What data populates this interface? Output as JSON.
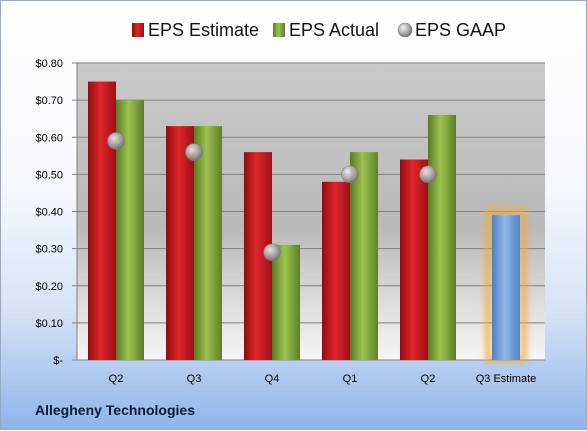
{
  "company": "Allegheny Technologies",
  "chart_data": {
    "type": "bar",
    "categories": [
      "Q2",
      "Q3",
      "Q4",
      "Q1",
      "Q2",
      "Q3 Estimate"
    ],
    "series": [
      {
        "name": "EPS Estimate",
        "type": "bar",
        "color": "#c8161d",
        "values": [
          0.75,
          0.63,
          0.56,
          0.48,
          0.54,
          null
        ]
      },
      {
        "name": "EPS Actual",
        "type": "bar",
        "color": "#7ea33a",
        "values": [
          0.7,
          0.63,
          0.31,
          0.56,
          0.66,
          0.39
        ]
      },
      {
        "name": "EPS GAAP",
        "type": "scatter",
        "color": "#a9a9a9",
        "values": [
          0.59,
          0.56,
          0.29,
          0.5,
          0.5,
          null
        ]
      }
    ],
    "highlight": {
      "category": "Q3 Estimate",
      "color": "#6f9fd8",
      "glow": "#f2a93b"
    },
    "y_ticks": [
      {
        "value": 0.8,
        "label": "$0.80"
      },
      {
        "value": 0.7,
        "label": "$0.70"
      },
      {
        "value": 0.6,
        "label": "$0.60"
      },
      {
        "value": 0.5,
        "label": "$0.50"
      },
      {
        "value": 0.4,
        "label": "$0.40"
      },
      {
        "value": 0.3,
        "label": "$0.30"
      },
      {
        "value": 0.2,
        "label": "$0.20"
      },
      {
        "value": 0.1,
        "label": "$0.10"
      },
      {
        "value": 0.0,
        "label": "$-"
      }
    ],
    "ylim": [
      0,
      0.8
    ],
    "grid": true,
    "legend": "top"
  }
}
